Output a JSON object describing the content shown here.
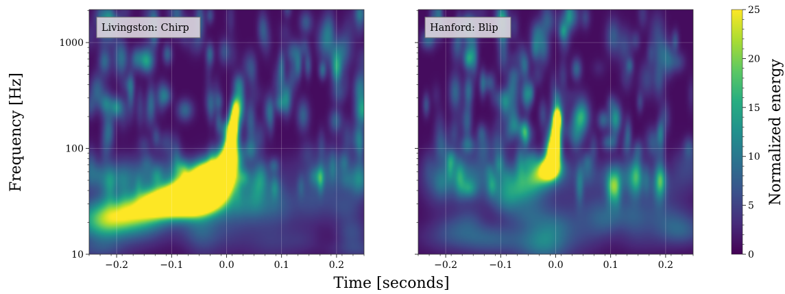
{
  "chart_data": {
    "type": "heatmap",
    "colormap": "viridis",
    "xlabel": "Time [seconds]",
    "ylabel": "Frequency [Hz]",
    "x_range": [
      -0.25,
      0.25
    ],
    "y_range": [
      10,
      2048
    ],
    "y_scale": "log",
    "x_ticks": [
      -0.2,
      -0.1,
      0.0,
      0.1,
      0.2
    ],
    "x_tick_labels": [
      "−0.2",
      "−0.1",
      "0.0",
      "0.1",
      "0.2"
    ],
    "y_ticks": [
      10,
      100,
      1000
    ],
    "y_tick_labels": [
      "10",
      "100",
      "1000"
    ],
    "grid": true,
    "colorbar": {
      "label": "Normalized energy",
      "range": [
        0,
        25
      ],
      "ticks": [
        0,
        5,
        10,
        15,
        20,
        25
      ],
      "tick_labels": [
        "0",
        "5",
        "10",
        "15",
        "20",
        "25"
      ]
    },
    "panels": [
      {
        "label": "Livingston: Chirp",
        "features": [
          {
            "t": -0.22,
            "f": 22,
            "sigma_t": 0.05,
            "sigma_logf": 0.12,
            "energy": 10
          },
          {
            "t": -0.17,
            "f": 24,
            "sigma_t": 0.04,
            "sigma_logf": 0.1,
            "energy": 13
          },
          {
            "t": -0.12,
            "f": 30,
            "sigma_t": 0.035,
            "sigma_logf": 0.09,
            "energy": 20
          },
          {
            "t": -0.09,
            "f": 32,
            "sigma_t": 0.03,
            "sigma_logf": 0.09,
            "energy": 30
          },
          {
            "t": -0.06,
            "f": 36,
            "sigma_t": 0.028,
            "sigma_logf": 0.11,
            "energy": 32
          },
          {
            "t": -0.04,
            "f": 42,
            "sigma_t": 0.025,
            "sigma_logf": 0.12,
            "energy": 32
          },
          {
            "t": -0.02,
            "f": 52,
            "sigma_t": 0.02,
            "sigma_logf": 0.12,
            "energy": 32
          },
          {
            "t": 0.0,
            "f": 70,
            "sigma_t": 0.012,
            "sigma_logf": 0.12,
            "energy": 32
          },
          {
            "t": 0.008,
            "f": 110,
            "sigma_t": 0.008,
            "sigma_logf": 0.12,
            "energy": 30
          },
          {
            "t": 0.013,
            "f": 170,
            "sigma_t": 0.006,
            "sigma_logf": 0.1,
            "energy": 28
          },
          {
            "t": 0.016,
            "f": 240,
            "sigma_t": 0.005,
            "sigma_logf": 0.08,
            "energy": 16
          },
          {
            "t": -0.04,
            "f": 58,
            "sigma_t": 0.02,
            "sigma_logf": 0.08,
            "energy": 10
          },
          {
            "t": -0.2,
            "f": 55,
            "sigma_t": 0.03,
            "sigma_logf": 0.12,
            "energy": 4
          },
          {
            "t": -0.1,
            "f": 60,
            "sigma_t": 0.03,
            "sigma_logf": 0.1,
            "energy": 3
          },
          {
            "t": 0.05,
            "f": 45,
            "sigma_t": 0.03,
            "sigma_logf": 0.12,
            "energy": 3
          },
          {
            "t": 0.15,
            "f": 30,
            "sigma_t": 0.05,
            "sigma_logf": 0.15,
            "energy": 3
          },
          {
            "t": -0.24,
            "f": 11,
            "sigma_t": 0.04,
            "sigma_logf": 0.06,
            "energy": 3
          },
          {
            "t": 0.24,
            "f": 11,
            "sigma_t": 0.04,
            "sigma_logf": 0.06,
            "energy": 3
          }
        ]
      },
      {
        "label": "Hanford: Blip",
        "features": [
          {
            "t": -0.01,
            "f": 65,
            "sigma_t": 0.012,
            "sigma_logf": 0.07,
            "energy": 30
          },
          {
            "t": -0.004,
            "f": 90,
            "sigma_t": 0.008,
            "sigma_logf": 0.08,
            "energy": 32
          },
          {
            "t": 0.0,
            "f": 130,
            "sigma_t": 0.006,
            "sigma_logf": 0.1,
            "energy": 32
          },
          {
            "t": 0.003,
            "f": 190,
            "sigma_t": 0.005,
            "sigma_logf": 0.07,
            "energy": 30
          },
          {
            "t": -0.03,
            "f": 55,
            "sigma_t": 0.02,
            "sigma_logf": 0.08,
            "energy": 10
          },
          {
            "t": -0.06,
            "f": 42,
            "sigma_t": 0.025,
            "sigma_logf": 0.1,
            "energy": 9
          },
          {
            "t": -0.09,
            "f": 32,
            "sigma_t": 0.02,
            "sigma_logf": 0.1,
            "energy": 5
          },
          {
            "t": -0.12,
            "f": 14,
            "sigma_t": 0.04,
            "sigma_logf": 0.1,
            "energy": 6
          },
          {
            "t": 0.12,
            "f": 55,
            "sigma_t": 0.03,
            "sigma_logf": 0.12,
            "energy": 3
          },
          {
            "t": 0.24,
            "f": 70,
            "sigma_t": 0.02,
            "sigma_logf": 0.12,
            "energy": 4
          },
          {
            "t": -0.2,
            "f": 60,
            "sigma_t": 0.03,
            "sigma_logf": 0.12,
            "energy": 3
          }
        ]
      }
    ]
  }
}
